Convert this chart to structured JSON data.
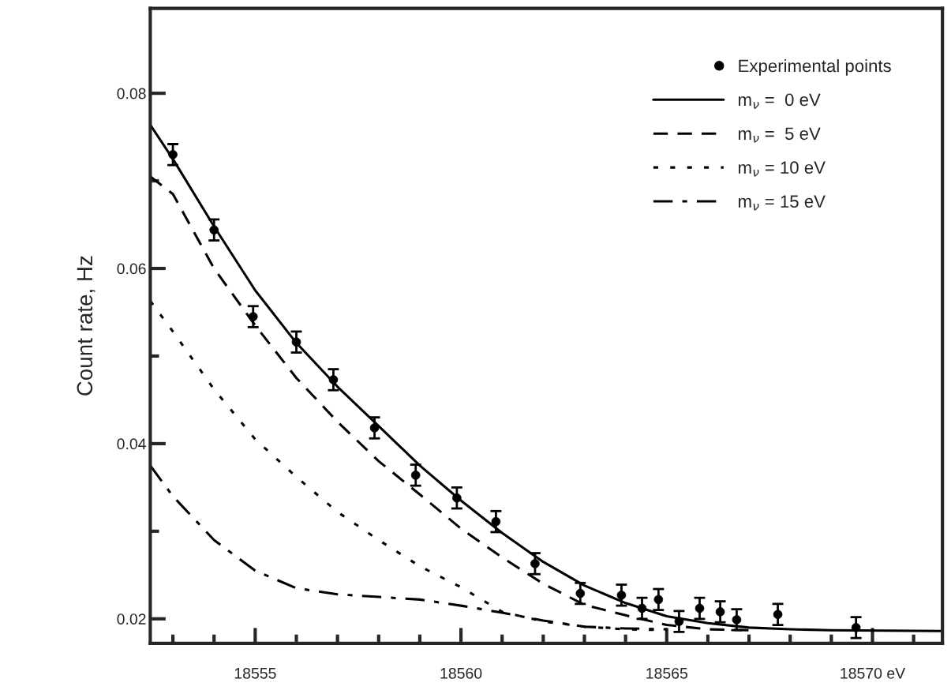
{
  "chart_data": {
    "type": "line",
    "ylabel": "Count rate, Hz",
    "xlim": [
      18552.45,
      18571.7
    ],
    "ylim": [
      0.0172,
      0.0897
    ],
    "xticks": [
      {
        "value": 18553,
        "label": null
      },
      {
        "value": 18554,
        "label": null
      },
      18555,
      {
        "value": 18556,
        "label": null
      },
      {
        "value": 18557,
        "label": null
      },
      {
        "value": 18558,
        "label": null
      },
      {
        "value": 18559,
        "label": null
      },
      18560,
      {
        "value": 18561,
        "label": null
      },
      {
        "value": 18562,
        "label": null
      },
      {
        "value": 18563,
        "label": null
      },
      {
        "value": 18564,
        "label": null
      },
      18565,
      {
        "value": 18566,
        "label": null
      },
      {
        "value": 18567,
        "label": null
      },
      {
        "value": 18568,
        "label": null
      },
      {
        "value": 18569,
        "label": null
      },
      {
        "value": 18570,
        "label": "18570 eV"
      },
      {
        "value": 18571,
        "label": null
      }
    ],
    "yticks": [
      0.02,
      {
        "value": 0.03,
        "label": null
      },
      0.04,
      {
        "value": 0.05,
        "label": null
      },
      0.06,
      {
        "value": 0.07,
        "label": null
      },
      0.08
    ],
    "grid": false,
    "legend": "top right",
    "series": [
      {
        "name": "Experimental points",
        "type": "scatter",
        "marker": "circle",
        "color": "#000000",
        "x": [
          18553,
          18554,
          18554.95,
          18556,
          18556.9,
          18557.9,
          18558.9,
          18559.9,
          18560.85,
          18561.8,
          18562.9,
          18563.9,
          18564.4,
          18564.8,
          18565.3,
          18565.8,
          18566.3,
          18566.7,
          18567.7,
          18569.6
        ],
        "values": [
          0.073,
          0.0644,
          0.0545,
          0.0516,
          0.0473,
          0.0418,
          0.0364,
          0.0338,
          0.0311,
          0.0263,
          0.0229,
          0.0227,
          0.0212,
          0.0222,
          0.0197,
          0.0212,
          0.0208,
          0.0199,
          0.0205,
          0.019
        ],
        "errors": [
          0.0012,
          0.0012,
          0.0012,
          0.0012,
          0.0012,
          0.0012,
          0.0012,
          0.0012,
          0.0012,
          0.0012,
          0.0012,
          0.0012,
          0.0012,
          0.0012,
          0.0012,
          0.0012,
          0.0012,
          0.0012,
          0.0012,
          0.0012
        ]
      },
      {
        "name": "m$_{ν}$ =  0 eV",
        "type": "line",
        "line_style": "solid",
        "color": "#000000",
        "x": [
          18552.45,
          18553,
          18554,
          18555,
          18556,
          18557,
          18558,
          18559,
          18560,
          18561,
          18562,
          18563,
          18564,
          18565,
          18566,
          18567,
          18568,
          18569,
          18571.7
        ],
        "values": [
          0.0764,
          0.0725,
          0.0648,
          0.0575,
          0.0515,
          0.0465,
          0.042,
          0.0375,
          0.0335,
          0.0298,
          0.0265,
          0.0238,
          0.0218,
          0.0203,
          0.0195,
          0.019,
          0.0188,
          0.0187,
          0.0186
        ]
      },
      {
        "name": "m$_{ν}$ =  5 eV",
        "type": "line",
        "line_style": "dashed",
        "color": "#000000",
        "x": [
          18552.45,
          18553,
          18554,
          18555,
          18556,
          18557,
          18558,
          18559,
          18560,
          18561,
          18562,
          18563,
          18564,
          18565,
          18566,
          18567
        ],
        "values": [
          0.0705,
          0.0685,
          0.06,
          0.0535,
          0.0475,
          0.0425,
          0.038,
          0.0342,
          0.0303,
          0.027,
          0.024,
          0.0216,
          0.0204,
          0.0193,
          0.0188,
          0.0187
        ]
      },
      {
        "name": "m$_{ν}$ = 10 eV",
        "type": "line",
        "line_style": "dotted",
        "color": "#000000",
        "x": [
          18552.45,
          18553,
          18554,
          18555,
          18556,
          18557,
          18558,
          18559,
          18560,
          18561,
          18562,
          18563,
          18564,
          18565
        ],
        "values": [
          0.0563,
          0.0528,
          0.0462,
          0.0405,
          0.0362,
          0.0322,
          0.029,
          0.026,
          0.0236,
          0.0208,
          0.0197,
          0.0191,
          0.0188,
          0.0187
        ]
      },
      {
        "name": "m$_{ν}$ = 15 eV",
        "type": "line",
        "line_style": "dashdot",
        "color": "#000000",
        "x": [
          18552.45,
          18553,
          18554,
          18555,
          18556,
          18557,
          18558,
          18559,
          18560,
          18561,
          18562,
          18563,
          18564,
          18565
        ],
        "values": [
          0.0375,
          0.034,
          0.029,
          0.0255,
          0.0235,
          0.0228,
          0.0225,
          0.0222,
          0.0215,
          0.0207,
          0.0198,
          0.0191,
          0.0189,
          0.0188
        ]
      }
    ]
  }
}
